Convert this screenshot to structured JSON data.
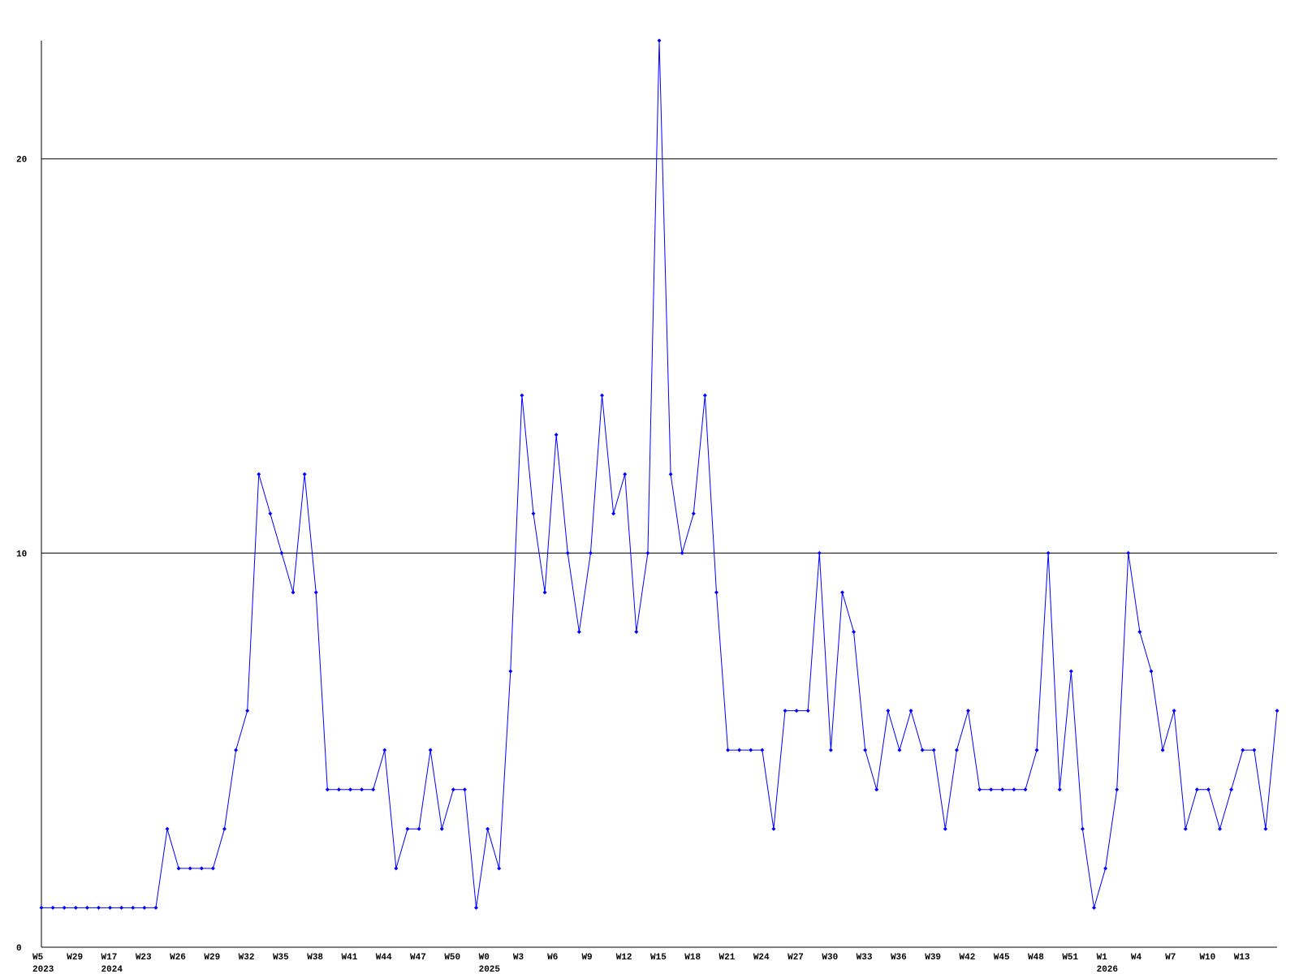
{
  "chart_data": {
    "type": "line",
    "categories": [
      "W5",
      null,
      null,
      "W29",
      null,
      null,
      "W17",
      null,
      null,
      "W23",
      null,
      null,
      "W26",
      null,
      null,
      "W29",
      null,
      null,
      "W32",
      null,
      null,
      "W35",
      null,
      null,
      "W38",
      null,
      null,
      "W41",
      null,
      null,
      "W44",
      null,
      null,
      "W47",
      null,
      null,
      "W50",
      null,
      null,
      "W0",
      null,
      null,
      "W3",
      null,
      null,
      "W6",
      null,
      null,
      "W9",
      null,
      null,
      "W12",
      null,
      null,
      "W15",
      null,
      null,
      "W18",
      null,
      null,
      "W21",
      null,
      null,
      "W24",
      null,
      null,
      "W27",
      null,
      null,
      "W30",
      null,
      null,
      "W33",
      null,
      null,
      "W36",
      null,
      null,
      "W39",
      null,
      null,
      "W42",
      null,
      null,
      "W45",
      null,
      null,
      "W48",
      null,
      null,
      "W51",
      null,
      null,
      "W1",
      null,
      null,
      "W4",
      null,
      null,
      "W7",
      null,
      null,
      "W10",
      null,
      null,
      "W13",
      null,
      null,
      null
    ],
    "years": [
      "2023",
      null,
      null,
      null,
      null,
      null,
      "2024",
      null,
      null,
      null,
      null,
      null,
      null,
      null,
      null,
      null,
      null,
      null,
      null,
      null,
      null,
      null,
      null,
      null,
      null,
      null,
      null,
      null,
      null,
      null,
      null,
      null,
      null,
      null,
      null,
      null,
      null,
      null,
      null,
      "2025",
      null,
      null,
      null,
      null,
      null,
      null,
      null,
      null,
      null,
      null,
      null,
      null,
      null,
      null,
      null,
      null,
      null,
      null,
      null,
      null,
      null,
      null,
      null,
      null,
      null,
      null,
      null,
      null,
      null,
      null,
      null,
      null,
      null,
      null,
      null,
      null,
      null,
      null,
      null,
      null,
      null,
      null,
      null,
      null,
      null,
      null,
      null,
      null,
      null,
      null,
      null,
      null,
      null,
      "2026",
      null,
      null,
      null,
      null,
      null,
      null,
      null,
      null,
      null,
      null,
      null,
      null,
      null,
      null,
      null
    ],
    "series": [
      {
        "color": "#0000ff",
        "values": [
          1,
          1,
          1,
          1,
          1,
          1,
          1,
          1,
          1,
          1,
          1,
          3,
          2,
          2,
          2,
          2,
          3,
          5,
          6,
          12,
          11,
          10,
          9,
          12,
          9,
          4,
          4,
          4,
          4,
          4,
          5,
          2,
          3,
          3,
          5,
          3,
          4,
          4,
          1,
          3,
          2,
          7,
          14,
          11,
          9,
          13,
          10,
          8,
          10,
          14,
          11,
          12,
          8,
          10,
          23,
          12,
          10,
          11,
          14,
          9,
          5,
          5,
          5,
          5,
          3,
          6,
          6,
          6,
          10,
          5,
          9,
          8,
          5,
          4,
          6,
          5,
          6,
          5,
          5,
          3,
          5,
          6,
          4,
          4,
          4,
          4,
          4,
          5,
          10,
          4,
          7,
          3,
          1,
          2,
          4,
          10,
          8,
          7,
          5,
          6,
          3,
          4,
          4,
          3,
          4,
          5,
          5,
          3,
          6
        ]
      }
    ],
    "ylim": [
      0,
      23
    ],
    "yticks": [
      0,
      10,
      20
    ],
    "grid": true
  }
}
